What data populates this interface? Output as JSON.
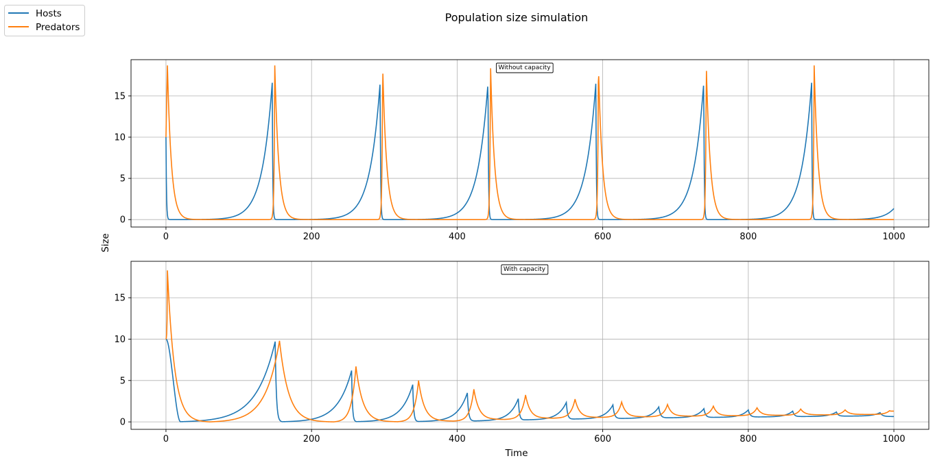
{
  "figure": {
    "title": "Population size simulation",
    "ylabel": "Size",
    "xlabel": "Time"
  },
  "legend": {
    "placement": "top-left",
    "entries": [
      {
        "label": "Hosts",
        "color": "#1f77b4"
      },
      {
        "label": "Predators",
        "color": "#ff7f0e"
      }
    ]
  },
  "chart_data": [
    {
      "type": "line",
      "annotation": "Without capacity",
      "xlim": [
        -48,
        1048
      ],
      "ylim": [
        -0.9,
        19.4
      ],
      "xticks": [
        0,
        200,
        400,
        600,
        800,
        1000
      ],
      "yticks": [
        0,
        5,
        10,
        15
      ],
      "grid": true,
      "series": [
        {
          "name": "Hosts",
          "color": "#1f77b4",
          "model": {
            "kind": "spike",
            "initial": 10,
            "period": 148.2,
            "firstPeak": 146,
            "peak": 16.6,
            "rise": 14,
            "drop": 0.7,
            "endValue": 0.5
          }
        },
        {
          "name": "Predators",
          "color": "#ff7f0e",
          "model": {
            "kind": "spike",
            "initial": 10,
            "period": 148.2,
            "firstPeak": 149.5,
            "peak": 18.7,
            "initialPeak": 18.7,
            "initialPeakAt": 2,
            "rise": 0.9,
            "drop": 5.5
          }
        }
      ]
    },
    {
      "type": "line",
      "annotation": "With capacity",
      "xlim": [
        -48,
        1048
      ],
      "ylim": [
        -0.9,
        19.4
      ],
      "xticks": [
        0,
        200,
        400,
        600,
        800,
        1000
      ],
      "yticks": [
        0,
        5,
        10,
        15
      ],
      "grid": true,
      "series": [
        {
          "name": "Hosts",
          "color": "#1f77b4",
          "model": {
            "kind": "damped",
            "initial": 10,
            "peaks": [
              [
                150,
                9.7
              ],
              [
                255,
                6.2
              ],
              [
                339,
                4.5
              ],
              [
                414,
                3.5
              ],
              [
                484,
                2.8
              ],
              [
                550,
                2.35
              ],
              [
                614,
                2.05
              ],
              [
                677,
                1.8
              ],
              [
                739,
                1.6
              ],
              [
                800,
                1.45
              ],
              [
                861,
                1.3
              ],
              [
                921,
                1.2
              ],
              [
                981,
                1.12
              ]
            ],
            "troughs": [
              [
                20,
                0.02
              ],
              [
                160,
                0.02
              ],
              [
                262,
                0.03
              ],
              [
                347,
                0.05
              ],
              [
                424,
                0.12
              ],
              [
                493,
                0.25
              ],
              [
                560,
                0.35
              ],
              [
                626,
                0.42
              ],
              [
                690,
                0.5
              ],
              [
                752,
                0.55
              ],
              [
                814,
                0.6
              ],
              [
                874,
                0.65
              ],
              [
                935,
                0.7
              ]
            ],
            "endValue": 0.65
          }
        },
        {
          "name": "Predators",
          "color": "#ff7f0e",
          "model": {
            "kind": "damped",
            "initial": 10,
            "initialPeak": 18.3,
            "initialPeakAt": 2,
            "peaks": [
              [
                156,
                9.8
              ],
              [
                261,
                6.7
              ],
              [
                347,
                5.0
              ],
              [
                423,
                3.95
              ],
              [
                494,
                3.25
              ],
              [
                562,
                2.75
              ],
              [
                626,
                2.4
              ],
              [
                689,
                2.1
              ],
              [
                752,
                1.9
              ],
              [
                812,
                1.7
              ],
              [
                872,
                1.55
              ],
              [
                933,
                1.45
              ],
              [
                994,
                1.35
              ]
            ],
            "troughs": [
              [
                60,
                0.0
              ],
              [
                230,
                0.0
              ],
              [
                318,
                0.02
              ],
              [
                395,
                0.1
              ],
              [
                465,
                0.3
              ],
              [
                532,
                0.45
              ],
              [
                598,
                0.55
              ],
              [
                661,
                0.62
              ],
              [
                722,
                0.7
              ],
              [
                783,
                0.75
              ],
              [
                845,
                0.8
              ],
              [
                905,
                0.85
              ],
              [
                965,
                0.9
              ]
            ],
            "endValue": 1.3
          }
        }
      ]
    }
  ]
}
